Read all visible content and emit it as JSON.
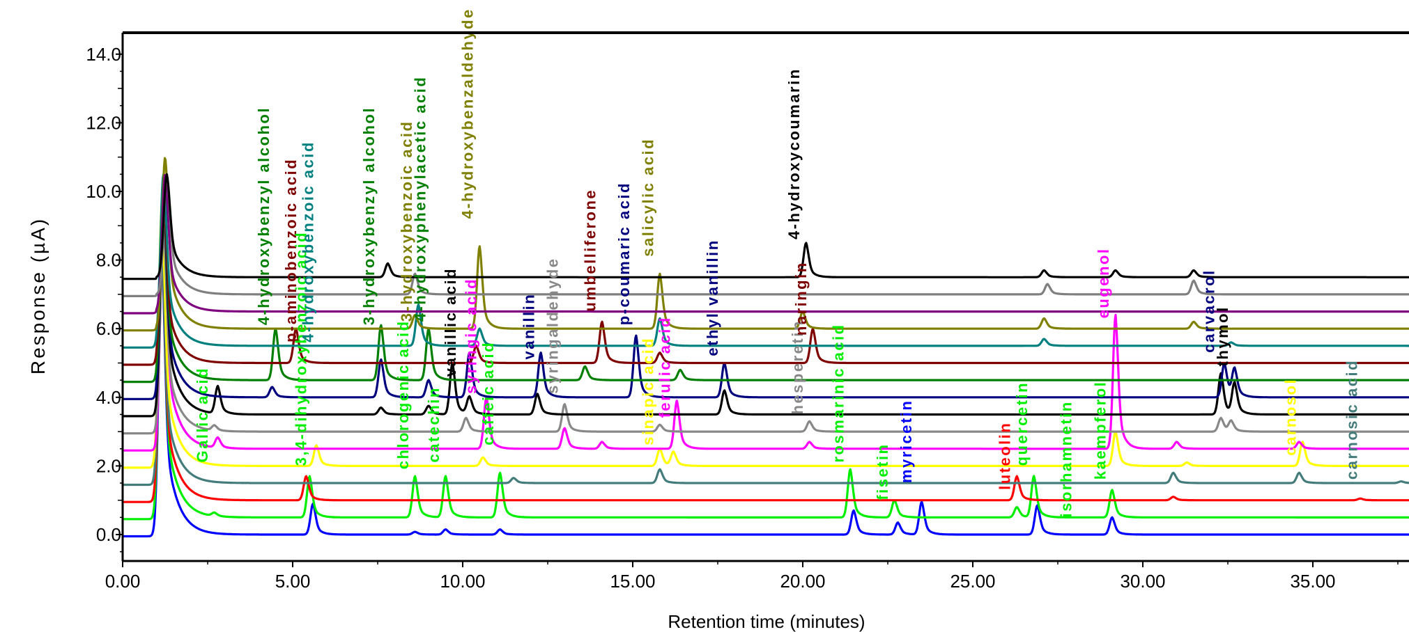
{
  "chart_data": {
    "type": "line",
    "title": "",
    "xlabel": "Retention time (minutes)",
    "ylabel": "Response (µA)",
    "xlim": [
      0,
      38.7
    ],
    "ylim": [
      -0.7,
      14.2
    ],
    "xticks": [
      "0.00",
      "5.00",
      "10.00",
      "15.00",
      "20.00",
      "25.00",
      "30.00",
      "35.00"
    ],
    "yticks": [
      "0.0",
      "2.0",
      "4.0",
      "6.0",
      "8.0",
      "10.0",
      "12.0",
      "14.0"
    ],
    "legend": "none",
    "series": [
      {
        "color": "#0000ff",
        "baseline": 0.0,
        "peaks": [
          [
            1.15,
            8.2
          ],
          [
            5.6,
            0.9
          ],
          [
            8.6,
            0.08
          ],
          [
            9.5,
            0.15
          ],
          [
            11.1,
            0.15
          ],
          [
            21.5,
            0.7
          ],
          [
            22.8,
            0.35
          ],
          [
            23.5,
            0.95
          ],
          [
            26.9,
            0.85
          ],
          [
            29.1,
            0.5
          ]
        ]
      },
      {
        "color": "#00ee00",
        "baseline": 0.5,
        "peaks": [
          [
            1.15,
            8.0
          ],
          [
            2.7,
            0.1
          ],
          [
            5.5,
            1.2
          ],
          [
            8.6,
            1.2
          ],
          [
            9.5,
            1.2
          ],
          [
            11.1,
            1.3
          ],
          [
            21.4,
            1.4
          ],
          [
            22.7,
            0.5
          ],
          [
            26.3,
            0.3
          ],
          [
            26.8,
            1.2
          ],
          [
            29.1,
            0.8
          ]
        ]
      },
      {
        "color": "#ff0000",
        "baseline": 1.0,
        "peaks": [
          [
            1.15,
            7.5
          ],
          [
            5.4,
            0.7
          ],
          [
            26.3,
            0.7
          ],
          [
            30.9,
            0.1
          ],
          [
            36.4,
            0.05
          ]
        ]
      },
      {
        "color": "#447c7c",
        "baseline": 1.5,
        "peaks": [
          [
            1.15,
            7.0
          ],
          [
            11.5,
            0.15
          ],
          [
            15.8,
            0.4
          ],
          [
            30.9,
            0.3
          ],
          [
            34.6,
            0.3
          ],
          [
            37.6,
            0.05
          ]
        ]
      },
      {
        "color": "#ffff00",
        "baseline": 2.0,
        "peaks": [
          [
            1.15,
            7.5
          ],
          [
            5.7,
            0.6
          ],
          [
            10.6,
            0.25
          ],
          [
            15.8,
            0.5
          ],
          [
            16.2,
            0.4
          ],
          [
            29.2,
            1.0
          ],
          [
            31.3,
            0.1
          ],
          [
            34.7,
            0.7
          ]
        ]
      },
      {
        "color": "#ff00ff",
        "baseline": 2.5,
        "peaks": [
          [
            1.2,
            7.0
          ],
          [
            2.8,
            0.3
          ],
          [
            10.7,
            1.5
          ],
          [
            13.0,
            0.6
          ],
          [
            14.1,
            0.2
          ],
          [
            16.3,
            1.4
          ],
          [
            20.2,
            0.2
          ],
          [
            29.2,
            3.9
          ],
          [
            31.0,
            0.2
          ],
          [
            34.6,
            0.2
          ]
        ]
      },
      {
        "color": "#888888",
        "baseline": 3.0,
        "peaks": [
          [
            1.2,
            6.0
          ],
          [
            2.7,
            0.15
          ],
          [
            10.1,
            0.4
          ],
          [
            13.0,
            0.8
          ],
          [
            15.8,
            0.2
          ],
          [
            20.2,
            0.3
          ],
          [
            32.3,
            0.4
          ],
          [
            32.6,
            0.3
          ]
        ]
      },
      {
        "color": "#000000",
        "baseline": 3.5,
        "peaks": [
          [
            1.2,
            6.5
          ],
          [
            2.8,
            0.8
          ],
          [
            7.6,
            0.2
          ],
          [
            9.0,
            0.25
          ],
          [
            9.7,
            1.5
          ],
          [
            10.2,
            0.5
          ],
          [
            12.2,
            0.6
          ],
          [
            17.7,
            0.7
          ],
          [
            32.3,
            1.2
          ],
          [
            32.7,
            0.9
          ]
        ]
      },
      {
        "color": "#00007f",
        "baseline": 4.0,
        "peaks": [
          [
            1.2,
            6.0
          ],
          [
            4.4,
            0.3
          ],
          [
            7.6,
            1.1
          ],
          [
            9.0,
            0.5
          ],
          [
            10.2,
            1.3
          ],
          [
            12.3,
            1.3
          ],
          [
            15.1,
            1.8
          ],
          [
            17.7,
            1.0
          ],
          [
            32.4,
            1.0
          ],
          [
            32.7,
            0.8
          ]
        ]
      },
      {
        "color": "#007f00",
        "baseline": 4.5,
        "peaks": [
          [
            1.2,
            5.5
          ],
          [
            4.5,
            1.5
          ],
          [
            7.6,
            1.6
          ],
          [
            9.0,
            1.5
          ],
          [
            13.6,
            0.4
          ],
          [
            16.4,
            0.3
          ]
        ]
      },
      {
        "color": "#7f0000",
        "baseline": 5.0,
        "peaks": [
          [
            1.2,
            5.0
          ],
          [
            5.1,
            1.0
          ],
          [
            10.4,
            0.5
          ],
          [
            14.1,
            1.2
          ],
          [
            15.8,
            0.3
          ],
          [
            20.3,
            1.0
          ]
        ]
      },
      {
        "color": "#007f7f",
        "baseline": 5.5,
        "peaks": [
          [
            1.2,
            5.0
          ],
          [
            8.7,
            1.2
          ],
          [
            10.5,
            0.5
          ],
          [
            15.8,
            0.8
          ],
          [
            27.1,
            0.2
          ],
          [
            32.6,
            0.1
          ]
        ]
      },
      {
        "color": "#7f7f00",
        "baseline": 6.0,
        "peaks": [
          [
            1.25,
            5.0
          ],
          [
            8.6,
            0.4
          ],
          [
            10.5,
            2.4
          ],
          [
            15.8,
            1.6
          ],
          [
            20.0,
            0.5
          ],
          [
            27.1,
            0.3
          ],
          [
            31.5,
            0.2
          ]
        ]
      },
      {
        "color": "#7f007f",
        "baseline": 6.5,
        "peaks": [
          [
            1.25,
            4.0
          ]
        ]
      },
      {
        "color": "#7f7f7f",
        "baseline": 7.0,
        "peaks": [
          [
            1.3,
            3.5
          ],
          [
            8.6,
            0.6
          ],
          [
            27.2,
            0.3
          ],
          [
            31.5,
            0.4
          ]
        ]
      },
      {
        "color": "#000000",
        "baseline": 7.5,
        "peaks": [
          [
            1.3,
            3.0
          ],
          [
            7.8,
            0.4
          ],
          [
            20.1,
            1.0
          ],
          [
            27.1,
            0.2
          ],
          [
            29.2,
            0.2
          ],
          [
            31.5,
            0.2
          ]
        ]
      }
    ],
    "labels": [
      {
        "text": "Gallic acid",
        "x": 2.5,
        "y": 2.1,
        "color": "#00ee00"
      },
      {
        "text": "4-hydroxybenzyl alcohol",
        "x": 4.3,
        "y": 6.1,
        "color": "#007f00"
      },
      {
        "text": "p-aminobenzoic acid",
        "x": 5.1,
        "y": 5.6,
        "color": "#7f0000"
      },
      {
        "text": "3,4-dihydroxybenzoic acid",
        "x": 5.4,
        "y": 2.0,
        "color": "#00ee00"
      },
      {
        "text": "4-hydroxybenzoic acid",
        "x": 5.6,
        "y": 5.6,
        "color": "#007f7f"
      },
      {
        "text": "3-hydroxybenzyl alcohol",
        "x": 7.4,
        "y": 6.1,
        "color": "#007f00"
      },
      {
        "text": "chlorogenic acid",
        "x": 8.4,
        "y": 1.9,
        "color": "#00ee00"
      },
      {
        "text": "3-hydroxybenzoic acid",
        "x": 8.5,
        "y": 6.2,
        "color": "#7f7f00"
      },
      {
        "text": "4-hydroxyphenylacetic acid",
        "x": 8.9,
        "y": 6.2,
        "color": "#007f00"
      },
      {
        "text": "catechin",
        "x": 9.3,
        "y": 2.1,
        "color": "#00ee00"
      },
      {
        "text": "vanillic acid",
        "x": 9.8,
        "y": 4.6,
        "color": "#000000"
      },
      {
        "text": "4-hydroxybenzaldehyde",
        "x": 10.3,
        "y": 9.2,
        "color": "#7f7f00"
      },
      {
        "text": "syringic acid",
        "x": 10.4,
        "y": 4.1,
        "color": "#ff00ff"
      },
      {
        "text": "caffeic acid",
        "x": 10.9,
        "y": 2.6,
        "color": "#00ee00"
      },
      {
        "text": "vanillin",
        "x": 12.1,
        "y": 5.1,
        "color": "#00007f"
      },
      {
        "text": "syringaldehyde",
        "x": 12.8,
        "y": 4.1,
        "color": "#888888"
      },
      {
        "text": "umbelliferone",
        "x": 13.9,
        "y": 6.5,
        "color": "#7f0000"
      },
      {
        "text": "p-coumaric acid",
        "x": 14.9,
        "y": 6.1,
        "color": "#00007f"
      },
      {
        "text": "sinapic acid",
        "x": 15.6,
        "y": 2.6,
        "color": "#ffff00"
      },
      {
        "text": "salicylic acid",
        "x": 15.6,
        "y": 8.1,
        "color": "#7f7f00"
      },
      {
        "text": "ferulic acid",
        "x": 16.1,
        "y": 3.4,
        "color": "#ff00ff"
      },
      {
        "text": "ethyl vanillin",
        "x": 17.5,
        "y": 5.2,
        "color": "#00007f"
      },
      {
        "text": "4-hydroxycoumarin",
        "x": 19.9,
        "y": 8.6,
        "color": "#000000"
      },
      {
        "text": "hesperetin",
        "x": 20.0,
        "y": 3.5,
        "color": "#888888"
      },
      {
        "text": "naringin",
        "x": 20.1,
        "y": 5.8,
        "color": "#7f0000"
      },
      {
        "text": "rosmarinic acid",
        "x": 21.2,
        "y": 2.1,
        "color": "#00ee00"
      },
      {
        "text": "fisetin",
        "x": 22.5,
        "y": 1.0,
        "color": "#00ee00"
      },
      {
        "text": "myricetin",
        "x": 23.2,
        "y": 1.5,
        "color": "#0000ff"
      },
      {
        "text": "luteolin",
        "x": 26.1,
        "y": 1.3,
        "color": "#ff0000"
      },
      {
        "text": "quercetin",
        "x": 26.6,
        "y": 2.0,
        "color": "#00ee00"
      },
      {
        "text": "isorhamnetin",
        "x": 27.9,
        "y": 0.5,
        "color": "#00ee00"
      },
      {
        "text": "kaempferol",
        "x": 28.9,
        "y": 1.6,
        "color": "#00ee00"
      },
      {
        "text": "eugenol",
        "x": 29.0,
        "y": 6.3,
        "color": "#ff00ff"
      },
      {
        "text": "carvacrol",
        "x": 32.1,
        "y": 5.3,
        "color": "#00007f"
      },
      {
        "text": "thymol",
        "x": 32.5,
        "y": 4.9,
        "color": "#000000"
      },
      {
        "text": "carnosol",
        "x": 34.5,
        "y": 2.3,
        "color": "#ffff00"
      },
      {
        "text": "carnosic acid",
        "x": 36.3,
        "y": 1.6,
        "color": "#447c7c"
      }
    ]
  }
}
